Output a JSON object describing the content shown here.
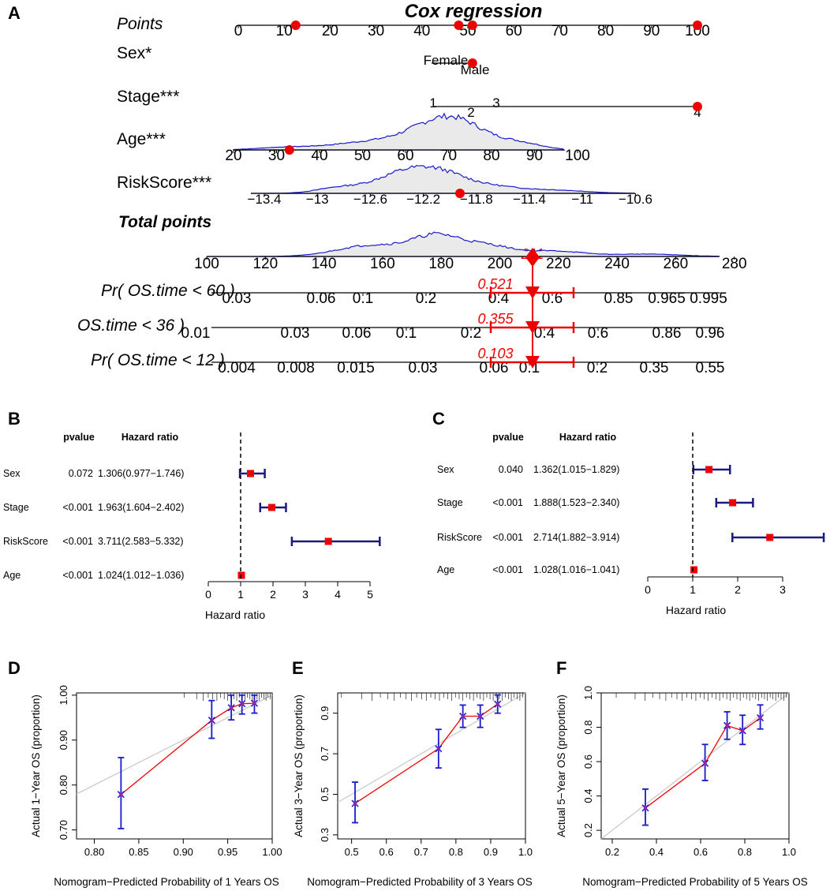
{
  "panels": {
    "A": "A",
    "B": "B",
    "C": "C",
    "D": "D",
    "E": "E",
    "F": "F"
  },
  "chart_data": [
    {
      "panel": "A",
      "type": "nomogram",
      "title": "Cox regression",
      "points_axis": {
        "label": "Points",
        "ticks": [
          "0",
          "10",
          "20",
          "30",
          "40",
          "50",
          "60",
          "70",
          "80",
          "90",
          "100"
        ],
        "marked_points": [
          12,
          48,
          51,
          100
        ]
      },
      "sex": {
        "label": "Sex*",
        "levels": [
          "Female",
          "Male"
        ],
        "marked": "Male",
        "marked_points": 51
      },
      "stage": {
        "label": "Stage***",
        "levels": [
          "1",
          "2",
          "3",
          "4"
        ],
        "marked": "4",
        "marked_points": 100
      },
      "age": {
        "label": "Age***",
        "ticks": [
          "20",
          "30",
          "40",
          "50",
          "60",
          "70",
          "80",
          "90",
          "100"
        ],
        "marked_value": 33,
        "distribution": "density"
      },
      "riskscore": {
        "label": "RiskScore***",
        "ticks": [
          "−13.4",
          "−13",
          "−12.6",
          "−12.2",
          "−11.8",
          "−11.4",
          "−11",
          "−10.6"
        ],
        "marked_value": -11.8,
        "distribution": "density"
      },
      "total_points": {
        "label": "Total points",
        "ticks": [
          "100",
          "120",
          "140",
          "160",
          "180",
          "200",
          "220",
          "240",
          "260",
          "280"
        ],
        "value": "211"
      },
      "predictions": [
        {
          "label": "Pr( OS.time < 60 )",
          "ticks": [
            "0.03",
            "0.06",
            "0.1",
            "0.2",
            "0.4",
            "0.6",
            "0.85",
            "0.965",
            "0.995"
          ],
          "value": "0.521"
        },
        {
          "label": "OS.time < 36 )",
          "ticks": [
            "0.01",
            "0.03",
            "0.06",
            "0.1",
            "0.2",
            "0.4",
            "0.6",
            "0.86",
            "0.96"
          ],
          "value": "0.355"
        },
        {
          "label": "Pr( OS.time < 12 )",
          "ticks": [
            "0.004",
            "0.008",
            "0.015",
            "0.03",
            "0.06",
            "0.1",
            "0.2",
            "0.35",
            "0.55"
          ],
          "value": "0.103"
        }
      ]
    },
    {
      "panel": "B",
      "type": "forest",
      "col_pvalue": "pvalue",
      "col_hr": "Hazard ratio",
      "xlabel": "Hazard ratio",
      "xlim": [
        0,
        5
      ],
      "xticks": [
        "0",
        "1",
        "2",
        "3",
        "4",
        "5"
      ],
      "rows": [
        {
          "name": "Sex",
          "pvalue": "0.072",
          "hr_text": "1.306(0.977−1.746)",
          "hr": 1.306,
          "lo": 0.977,
          "hi": 1.746
        },
        {
          "name": "Stage",
          "pvalue": "<0.001",
          "hr_text": "1.963(1.604−2.402)",
          "hr": 1.963,
          "lo": 1.604,
          "hi": 2.402
        },
        {
          "name": "RiskScore",
          "pvalue": "<0.001",
          "hr_text": "3.711(2.583−5.332)",
          "hr": 3.711,
          "lo": 2.583,
          "hi": 5.332
        },
        {
          "name": "Age",
          "pvalue": "<0.001",
          "hr_text": "1.024(1.012−1.036)",
          "hr": 1.024,
          "lo": 1.012,
          "hi": 1.036
        }
      ]
    },
    {
      "panel": "C",
      "type": "forest",
      "col_pvalue": "pvalue",
      "col_hr": "Hazard ratio",
      "xlabel": "Hazard ratio",
      "xlim": [
        0,
        3
      ],
      "xticks": [
        "0",
        "1",
        "2",
        "3"
      ],
      "rows": [
        {
          "name": "Sex",
          "pvalue": "0.040",
          "hr_text": "1.362(1.015−1.829)",
          "hr": 1.362,
          "lo": 1.015,
          "hi": 1.829
        },
        {
          "name": "Stage",
          "pvalue": "<0.001",
          "hr_text": "1.888(1.523−2.340)",
          "hr": 1.888,
          "lo": 1.523,
          "hi": 2.34
        },
        {
          "name": "RiskScore",
          "pvalue": "<0.001",
          "hr_text": "2.714(1.882−3.914)",
          "hr": 2.714,
          "lo": 1.882,
          "hi": 3.914
        },
        {
          "name": "Age",
          "pvalue": "<0.001",
          "hr_text": "1.028(1.016−1.041)",
          "hr": 1.028,
          "lo": 1.016,
          "hi": 1.041
        }
      ]
    },
    {
      "panel": "D",
      "type": "calibration",
      "xlabel": "Nomogram−Predicted Probability of 1 Years OS",
      "ylabel": "Actual 1−Year OS (proportion)",
      "xlim": [
        0.78,
        1.0
      ],
      "ylim": [
        0.68,
        1.005
      ],
      "xticks": [
        0.8,
        0.85,
        0.9,
        0.95,
        1.0
      ],
      "xtick_labels": [
        "0.80",
        "0.85",
        "0.90",
        "0.95",
        "1.00"
      ],
      "yticks": [
        0.7,
        0.8,
        0.9,
        1.0
      ],
      "ytick_labels": [
        "0.70",
        "0.80",
        "0.90",
        "1.00"
      ],
      "points": [
        {
          "x": 0.83,
          "y": 0.779,
          "lo": 0.703,
          "hi": 0.861
        },
        {
          "x": 0.932,
          "y": 0.944,
          "lo": 0.904,
          "hi": 0.988
        },
        {
          "x": 0.954,
          "y": 0.972,
          "lo": 0.945,
          "hi": 1.0
        },
        {
          "x": 0.966,
          "y": 0.981,
          "lo": 0.958,
          "hi": 1.0
        },
        {
          "x": 0.98,
          "y": 0.982,
          "lo": 0.96,
          "hi": 1.0
        }
      ]
    },
    {
      "panel": "E",
      "type": "calibration",
      "xlabel": "Nomogram−Predicted Probability of 3 Years OS",
      "ylabel": "Actual 3−Year OS (proportion)",
      "xlim": [
        0.46,
        1.0
      ],
      "ylim": [
        0.28,
        1.0
      ],
      "xticks": [
        0.5,
        0.6,
        0.7,
        0.8,
        0.9,
        1.0
      ],
      "xtick_labels": [
        "0.5",
        "0.6",
        "0.7",
        "0.8",
        "0.9",
        "1.0"
      ],
      "yticks": [
        0.3,
        0.5,
        0.7,
        0.9
      ],
      "ytick_labels": [
        "0.3",
        "0.5",
        "0.7",
        "0.9"
      ],
      "points": [
        {
          "x": 0.51,
          "y": 0.455,
          "lo": 0.36,
          "hi": 0.56
        },
        {
          "x": 0.75,
          "y": 0.725,
          "lo": 0.63,
          "hi": 0.82
        },
        {
          "x": 0.82,
          "y": 0.885,
          "lo": 0.83,
          "hi": 0.94
        },
        {
          "x": 0.87,
          "y": 0.885,
          "lo": 0.83,
          "hi": 0.94
        },
        {
          "x": 0.92,
          "y": 0.945,
          "lo": 0.9,
          "hi": 0.99
        }
      ]
    },
    {
      "panel": "F",
      "type": "calibration",
      "xlabel": "Nomogram−Predicted Probability of 5 Years OS",
      "ylabel": "Actual 5−Year OS (proportion)",
      "xlim": [
        0.15,
        1.0
      ],
      "ylim": [
        0.15,
        1.0
      ],
      "xticks": [
        0.2,
        0.4,
        0.6,
        0.8,
        1.0
      ],
      "xtick_labels": [
        "0.2",
        "0.4",
        "0.6",
        "0.8",
        "1.0"
      ],
      "yticks": [
        0.2,
        0.4,
        0.6,
        0.8,
        1.0
      ],
      "ytick_labels": [
        "0.2",
        "0.4",
        "0.6",
        "0.8",
        "1.0"
      ],
      "points": [
        {
          "x": 0.35,
          "y": 0.33,
          "lo": 0.23,
          "hi": 0.44
        },
        {
          "x": 0.62,
          "y": 0.59,
          "lo": 0.49,
          "hi": 0.7
        },
        {
          "x": 0.72,
          "y": 0.81,
          "lo": 0.73,
          "hi": 0.89
        },
        {
          "x": 0.79,
          "y": 0.78,
          "lo": 0.7,
          "hi": 0.87
        },
        {
          "x": 0.87,
          "y": 0.855,
          "lo": 0.79,
          "hi": 0.93
        }
      ]
    }
  ]
}
